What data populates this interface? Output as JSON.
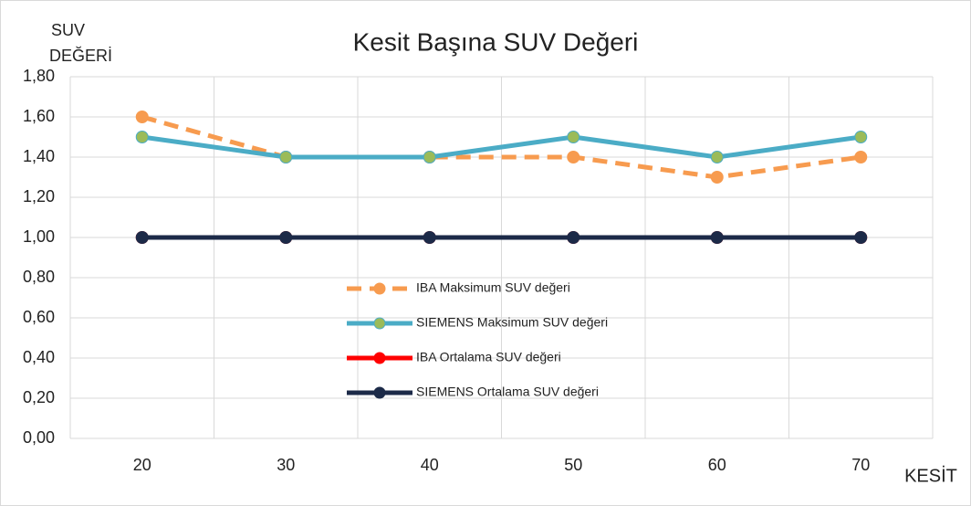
{
  "chart_data": {
    "type": "line",
    "title": "Kesit Başına SUV Değeri",
    "y_label": [
      "SUV",
      "DEĞERİ"
    ],
    "x_label": "KESİT",
    "categories": [
      "20",
      "30",
      "40",
      "50",
      "60",
      "70"
    ],
    "series": [
      {
        "name": "IBA Maksimum SUV değeri",
        "color": "#f79b4f",
        "marker_color": "#f79b4f",
        "dashed": true,
        "values": [
          1.6,
          1.4,
          1.4,
          1.4,
          1.3,
          1.4
        ]
      },
      {
        "name": "SIEMENS Maksimum SUV değeri",
        "color": "#4bacc6",
        "marker_color": "#9bbb59",
        "dashed": false,
        "values": [
          1.5,
          1.4,
          1.4,
          1.5,
          1.4,
          1.5
        ]
      },
      {
        "name": "IBA Ortalama SUV değeri",
        "color": "#ff0000",
        "marker_color": "#ff0000",
        "dashed": false,
        "values": [
          1.0,
          1.0,
          1.0,
          1.0,
          1.0,
          1.0
        ]
      },
      {
        "name": "SIEMENS Ortalama SUV değeri",
        "color": "#1c2a48",
        "marker_color": "#1c2a48",
        "dashed": false,
        "values": [
          1.0,
          1.0,
          1.0,
          1.0,
          1.0,
          1.0
        ]
      }
    ],
    "ylim": [
      0,
      1.8
    ],
    "yticks": [
      {
        "value": 0,
        "label": "0,00"
      },
      {
        "value": 0.2,
        "label": "0,20"
      },
      {
        "value": 0.4,
        "label": "0,40"
      },
      {
        "value": 0.6,
        "label": "0,60"
      },
      {
        "value": 0.8,
        "label": "0,80"
      },
      {
        "value": 1.0,
        "label": "1,00"
      },
      {
        "value": 1.2,
        "label": "1,20"
      },
      {
        "value": 1.4,
        "label": "1,40"
      },
      {
        "value": 1.6,
        "label": "1,60"
      },
      {
        "value": 1.8,
        "label": "1,80"
      }
    ],
    "grid": true
  }
}
